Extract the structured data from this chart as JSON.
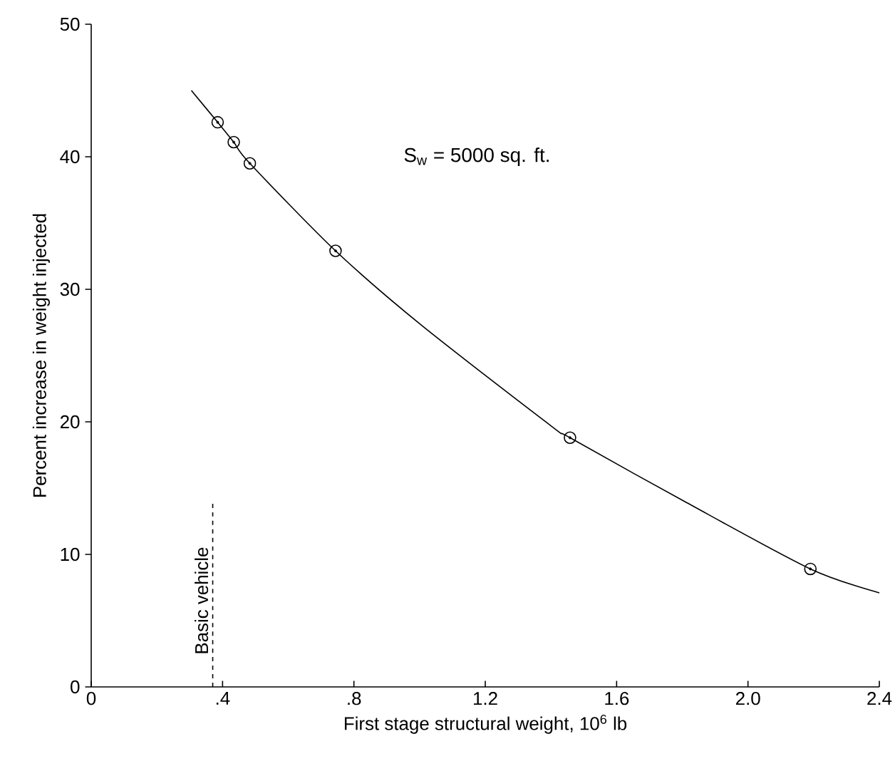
{
  "chart_data": {
    "type": "line",
    "xlabel": "First stage structural weight, 10$^{6}$ lb",
    "ylabel": "Percent increase in weight injected",
    "xlim": [
      0,
      2.4
    ],
    "ylim": [
      0,
      50
    ],
    "xticks": [
      0,
      {
        "value": 0.4,
        "label": ".4"
      },
      {
        "value": 0.8,
        "label": ".8"
      },
      1.2,
      1.6,
      {
        "value": 2.0,
        "label": "2.0"
      },
      2.4
    ],
    "yticks": [
      0,
      10,
      20,
      30,
      40,
      50
    ],
    "series": [
      {
        "color": "#000000",
        "x": [
          0.305,
          0.385,
          0.434,
          0.483,
          0.744,
          1.005,
          1.4,
          1.458,
          1.806,
          2.19,
          2.4
        ],
        "values": [
          45.0,
          42.6,
          41.1,
          39.5,
          32.9,
          27.3,
          19.7,
          18.8,
          14.0,
          8.9,
          7.1
        ]
      },
      {
        "type": "scatter",
        "color": "#000000",
        "marker": "circle",
        "x": [
          0.385,
          0.434,
          0.483,
          0.744,
          1.458,
          2.19
        ],
        "values": [
          42.6,
          41.1,
          39.5,
          32.9,
          18.8,
          8.9
        ]
      }
    ],
    "ref_lines": [
      {
        "axis": "x",
        "value": 0.37,
        "label": "Basic vehicle",
        "line_style": "dashed"
      }
    ],
    "annotations": [
      "S$_{w}$ = 5000 sq. ft."
    ],
    "grid": false
  }
}
